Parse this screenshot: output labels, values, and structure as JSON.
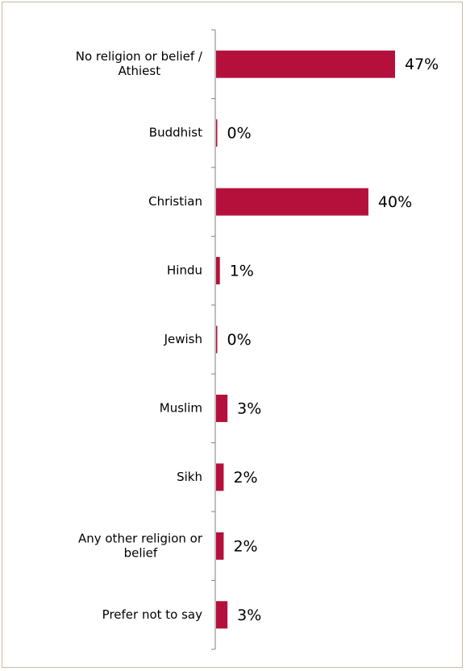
{
  "chart_data": {
    "type": "bar",
    "orientation": "horizontal",
    "categories": [
      [
        "No religion or belief /",
        "Athiest"
      ],
      [
        "Buddhist"
      ],
      [
        "Christian"
      ],
      [
        "Hindu"
      ],
      [
        "Jewish"
      ],
      [
        "Muslim"
      ],
      [
        "Sikh"
      ],
      [
        "Any other religion or",
        "belief"
      ],
      [
        "Prefer not to say"
      ]
    ],
    "values": [
      47,
      0,
      40,
      1,
      0,
      3,
      2,
      2,
      3
    ],
    "value_labels": [
      "47%",
      "0%",
      "40%",
      "1%",
      "0%",
      "3%",
      "2%",
      "2%",
      "3%"
    ],
    "unit": "%",
    "xlim": [
      0,
      47
    ],
    "grid": false,
    "legend": "none",
    "bar_color": "#b5103c"
  }
}
